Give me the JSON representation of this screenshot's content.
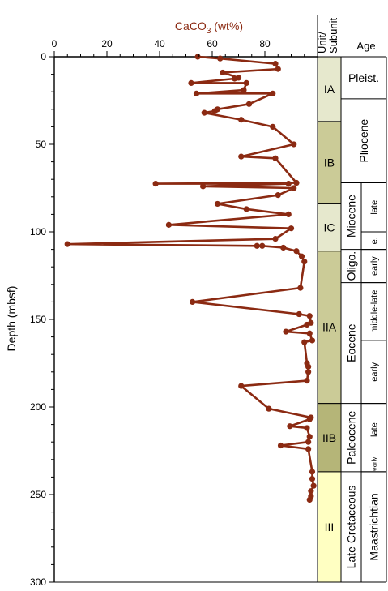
{
  "chart_data": {
    "type": "line",
    "title": "",
    "xlabel_main": "CaCO",
    "xlabel_sub": "3",
    "xlabel_unit": " (wt%)",
    "ylabel": "Depth (mbsf)",
    "xlim": [
      0,
      100
    ],
    "ylim": [
      0,
      300
    ],
    "x_ticks": [
      "0",
      "20",
      "40",
      "60",
      "80"
    ],
    "y_ticks": [
      "0",
      "50",
      "100",
      "150",
      "200",
      "250",
      "300"
    ],
    "series_color": "#8b2a12",
    "grid": false,
    "series": [
      {
        "name": "",
        "points": [
          [
            54.5,
            0
          ],
          [
            63,
            1
          ],
          [
            84,
            4
          ],
          [
            85,
            7
          ],
          [
            64,
            9
          ],
          [
            70,
            12
          ],
          [
            68.5,
            12.5
          ],
          [
            52,
            15
          ],
          [
            73,
            15
          ],
          [
            72,
            19
          ],
          [
            54,
            21
          ],
          [
            83,
            21
          ],
          [
            74,
            27
          ],
          [
            62,
            30
          ],
          [
            61,
            31
          ],
          [
            57,
            32
          ],
          [
            71,
            36
          ],
          [
            83,
            40
          ],
          [
            91,
            50
          ],
          [
            71,
            57
          ],
          [
            84,
            58
          ],
          [
            92,
            72
          ],
          [
            38.5,
            72.5
          ],
          [
            89,
            72.5
          ],
          [
            56.5,
            74
          ],
          [
            91,
            75
          ],
          [
            85,
            79
          ],
          [
            62,
            84
          ],
          [
            73,
            87
          ],
          [
            89,
            90
          ],
          [
            43.5,
            96
          ],
          [
            90,
            98
          ],
          [
            84,
            104
          ],
          [
            5,
            107
          ],
          [
            77,
            108
          ],
          [
            79,
            108
          ],
          [
            87,
            109
          ],
          [
            92,
            111
          ],
          [
            94,
            114
          ],
          [
            95,
            117
          ],
          [
            93.5,
            132
          ],
          [
            52.5,
            140
          ],
          [
            93,
            147
          ],
          [
            97,
            148
          ],
          [
            97.5,
            152
          ],
          [
            96,
            153
          ],
          [
            88,
            157
          ],
          [
            97,
            158
          ],
          [
            98,
            162
          ],
          [
            95,
            163
          ],
          [
            96,
            175
          ],
          [
            96.5,
            177
          ],
          [
            96.5,
            180
          ],
          [
            96,
            185
          ],
          [
            71,
            188
          ],
          [
            81.5,
            201
          ],
          [
            97.5,
            206
          ],
          [
            97,
            207
          ],
          [
            89.5,
            211
          ],
          [
            96,
            212
          ],
          [
            97,
            217
          ],
          [
            96.5,
            220
          ],
          [
            86,
            222
          ],
          [
            96.5,
            224
          ],
          [
            98,
            237
          ],
          [
            98,
            241
          ],
          [
            98.5,
            245
          ],
          [
            97.5,
            248
          ],
          [
            97.5,
            251
          ],
          [
            97,
            253
          ]
        ]
      }
    ]
  },
  "units": {
    "header_line1": "Unit/",
    "header_line2": "Subunit",
    "items": [
      {
        "label": "IA",
        "top": 0,
        "bottom": 37,
        "color": "#e6e8cd"
      },
      {
        "label": "IB",
        "top": 37,
        "bottom": 84,
        "color": "#cbcb97"
      },
      {
        "label": "IC",
        "top": 84,
        "bottom": 111,
        "color": "#e6e8cd"
      },
      {
        "label": "IIA",
        "top": 111,
        "bottom": 198,
        "color": "#cbcb97"
      },
      {
        "label": "IIB",
        "top": 198,
        "bottom": 237,
        "color": "#b5b578"
      },
      {
        "label": "III",
        "top": 237,
        "bottom": 300,
        "color": "#ffffc2"
      }
    ]
  },
  "age": {
    "header": "Age",
    "epochs": [
      {
        "label": "Pleist.",
        "top": 0,
        "bottom": 24,
        "full_width": true
      },
      {
        "label": "Pliocene",
        "top": 24,
        "bottom": 72,
        "full_width": true
      },
      {
        "label": "Miocene",
        "top": 72,
        "bottom": 110
      },
      {
        "label": "Oligo.",
        "top": 110,
        "bottom": 129
      },
      {
        "label": "Eocene",
        "top": 129,
        "bottom": 198
      },
      {
        "label": "Paleocene",
        "top": 198,
        "bottom": 237
      },
      {
        "label": "Late Cretaceous",
        "top": 237,
        "bottom": 300
      }
    ],
    "subdivisions": [
      {
        "label": "late",
        "top": 72,
        "bottom": 100
      },
      {
        "label": "e.",
        "top": 100,
        "bottom": 110
      },
      {
        "label": "early",
        "top": 110,
        "bottom": 129
      },
      {
        "label": "middle-late",
        "top": 129,
        "bottom": 162
      },
      {
        "label": "early",
        "top": 162,
        "bottom": 198
      },
      {
        "label": "late",
        "top": 198,
        "bottom": 228
      },
      {
        "label": "early",
        "top": 228,
        "bottom": 237
      },
      {
        "label": "Maastrichtian",
        "top": 237,
        "bottom": 300
      }
    ]
  }
}
